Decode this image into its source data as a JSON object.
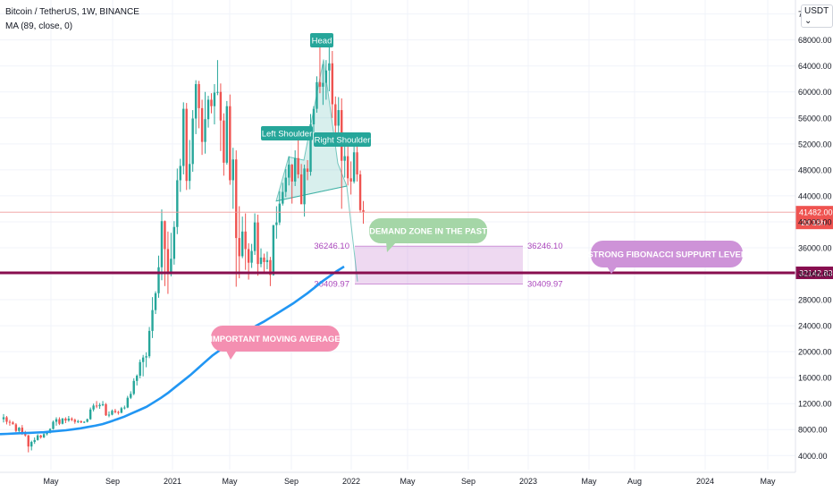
{
  "header": {
    "symbol_line": "Bitcoin / TetherUS, 1W, BINANCE",
    "indicator_line": "MA (89, close, 0)"
  },
  "currency_badge": "USDT",
  "colors": {
    "up": "#26a69a",
    "down": "#ef5350",
    "ma": "#2196f3",
    "support": "#880e4f",
    "demand_zone": "#e1bee7",
    "demand_label": "#a5d6a7",
    "fib_label": "#ce93d8",
    "ma_label": "#f48fb1",
    "hs_label": "#26a69a",
    "price_tag": "#ef5350"
  },
  "chart_data": {
    "type": "candlestick",
    "y_axis": {
      "ticks": [
        "4000.00",
        "8000.00",
        "12000.00",
        "16000.00",
        "20000.00",
        "24000.00",
        "28000.00",
        "32000.00",
        "36000.00",
        "40000.00",
        "44000.00",
        "48000.00",
        "52000.00",
        "56000.00",
        "60000.00",
        "64000.00",
        "68000.00",
        "72000.00"
      ],
      "range": [
        2800,
        72500
      ]
    },
    "x_axis": {
      "ticks": [
        "May",
        "Sep",
        "2021",
        "May",
        "Sep",
        "2022",
        "May",
        "Sep",
        "2023",
        "May",
        "Aug",
        "2024",
        "May"
      ]
    },
    "candles_weekly": [
      [
        9600,
        10400,
        9100,
        9900
      ],
      [
        9900,
        10100,
        8800,
        9200
      ],
      [
        9200,
        9500,
        8600,
        9100
      ],
      [
        9100,
        9300,
        8900,
        8800
      ],
      [
        8800,
        9000,
        7600,
        7800
      ],
      [
        7800,
        8400,
        7500,
        8300
      ],
      [
        8300,
        8700,
        7200,
        7300
      ],
      [
        7300,
        7800,
        6900,
        7100
      ],
      [
        7100,
        7200,
        4500,
        5400
      ],
      [
        5400,
        6300,
        4800,
        6100
      ],
      [
        6100,
        6800,
        5800,
        6400
      ],
      [
        6400,
        7300,
        6300,
        7100
      ],
      [
        7100,
        7200,
        6600,
        6800
      ],
      [
        6800,
        7600,
        6700,
        7300
      ],
      [
        7300,
        7700,
        7100,
        7500
      ],
      [
        7500,
        8200,
        7400,
        8100
      ],
      [
        8100,
        9400,
        8000,
        9200
      ],
      [
        9200,
        9900,
        8600,
        9600
      ],
      [
        9600,
        9900,
        8700,
        8900
      ],
      [
        8900,
        9800,
        8800,
        9700
      ],
      [
        9700,
        9900,
        9000,
        9400
      ],
      [
        9400,
        10100,
        9200,
        9700
      ],
      [
        9700,
        9900,
        9300,
        9500
      ],
      [
        9500,
        9700,
        8900,
        9200
      ],
      [
        9200,
        9500,
        9000,
        9300
      ],
      [
        9300,
        9400,
        9000,
        9100
      ],
      [
        9100,
        9300,
        9000,
        9200
      ],
      [
        9200,
        9700,
        9100,
        9600
      ],
      [
        9600,
        11400,
        9500,
        11100
      ],
      [
        11100,
        12000,
        10800,
        11700
      ],
      [
        11700,
        12400,
        11300,
        11600
      ],
      [
        11600,
        12100,
        11200,
        11800
      ],
      [
        11800,
        12400,
        11600,
        11900
      ],
      [
        11900,
        12100,
        10100,
        10200
      ],
      [
        10200,
        10800,
        9900,
        10300
      ],
      [
        10300,
        11100,
        10200,
        10900
      ],
      [
        10900,
        11200,
        10500,
        10700
      ],
      [
        10700,
        10900,
        10300,
        10600
      ],
      [
        10600,
        11500,
        10500,
        11300
      ],
      [
        11300,
        11700,
        11100,
        11400
      ],
      [
        11400,
        13200,
        11300,
        12900
      ],
      [
        12900,
        13900,
        12700,
        13500
      ],
      [
        13500,
        15900,
        13300,
        15500
      ],
      [
        15500,
        16500,
        14800,
        16300
      ],
      [
        16300,
        18800,
        15900,
        18400
      ],
      [
        18400,
        19500,
        16200,
        19100
      ],
      [
        19100,
        19900,
        17600,
        19300
      ],
      [
        19300,
        23800,
        19000,
        23200
      ],
      [
        23200,
        28400,
        22100,
        26400
      ],
      [
        26400,
        29300,
        25800,
        29000
      ],
      [
        29000,
        34800,
        28300,
        33000
      ],
      [
        33000,
        41900,
        31000,
        40100
      ],
      [
        40100,
        40200,
        30100,
        35800
      ],
      [
        35800,
        38500,
        28900,
        32300
      ],
      [
        32300,
        38300,
        31600,
        34300
      ],
      [
        34300,
        40100,
        33400,
        39200
      ],
      [
        39200,
        48200,
        38100,
        46400
      ],
      [
        46400,
        49700,
        44600,
        48600
      ],
      [
        48600,
        58400,
        47300,
        57400
      ],
      [
        57400,
        58300,
        44900,
        46300
      ],
      [
        46300,
        52600,
        45000,
        48900
      ],
      [
        48900,
        57200,
        47700,
        55900
      ],
      [
        55900,
        61800,
        53500,
        61200
      ],
      [
        61200,
        61700,
        54400,
        57500
      ],
      [
        57500,
        58800,
        50300,
        52300
      ],
      [
        52300,
        60000,
        50500,
        55800
      ],
      [
        55800,
        59400,
        54500,
        58800
      ],
      [
        58800,
        59800,
        56700,
        57800
      ],
      [
        57800,
        61200,
        55000,
        59900
      ],
      [
        59900,
        64900,
        59500,
        60000
      ],
      [
        60000,
        61300,
        50900,
        55600
      ],
      [
        55600,
        56700,
        47100,
        49100
      ],
      [
        49100,
        58600,
        48800,
        57800
      ],
      [
        57800,
        59600,
        45700,
        46400
      ],
      [
        46400,
        51400,
        42000,
        49600
      ],
      [
        49600,
        51000,
        30000,
        37500
      ],
      [
        37500,
        42400,
        31300,
        34700
      ],
      [
        34700,
        40800,
        34400,
        38500
      ],
      [
        38500,
        41300,
        32600,
        35800
      ],
      [
        35800,
        36700,
        31100,
        33700
      ],
      [
        33700,
        36600,
        32900,
        35500
      ],
      [
        35500,
        41300,
        34900,
        39900
      ],
      [
        39900,
        41100,
        31700,
        33500
      ],
      [
        33500,
        35900,
        33000,
        34500
      ],
      [
        34500,
        35100,
        32100,
        33800
      ],
      [
        33800,
        35400,
        32700,
        34100
      ],
      [
        34100,
        34600,
        30100,
        31800
      ],
      [
        31800,
        39300,
        31700,
        39500
      ],
      [
        39500,
        42400,
        37400,
        39900
      ],
      [
        39900,
        44700,
        39500,
        42800
      ],
      [
        42800,
        46000,
        42500,
        44600
      ],
      [
        44600,
        48100,
        43800,
        46800
      ],
      [
        46800,
        50100,
        45600,
        48800
      ],
      [
        48800,
        48900,
        42800,
        46200
      ],
      [
        46200,
        51000,
        45500,
        49800
      ],
      [
        49800,
        52900,
        46700,
        47300
      ],
      [
        47300,
        48900,
        42800,
        42700
      ],
      [
        42700,
        48800,
        40800,
        48200
      ],
      [
        48200,
        49500,
        46400,
        47700
      ],
      [
        47700,
        56600,
        47100,
        55000
      ],
      [
        55000,
        57800,
        53800,
        57400
      ],
      [
        57400,
        62400,
        56800,
        61500
      ],
      [
        61500,
        67000,
        59800,
        60800
      ],
      [
        60800,
        64300,
        58000,
        61400
      ],
      [
        61400,
        64900,
        58800,
        63300
      ],
      [
        63300,
        69000,
        60100,
        64400
      ],
      [
        64400,
        66300,
        56000,
        58100
      ],
      [
        58100,
        59300,
        53300,
        54800
      ],
      [
        54800,
        59200,
        53500,
        57200
      ],
      [
        57200,
        59000,
        42000,
        49400
      ],
      [
        49400,
        51900,
        46800,
        50100
      ],
      [
        50100,
        52000,
        45600,
        46700
      ],
      [
        46700,
        49300,
        44200,
        46200
      ],
      [
        46200,
        52000,
        45900,
        50700
      ],
      [
        50700,
        51900,
        46200,
        47300
      ],
      [
        47300,
        47900,
        41400,
        41800
      ],
      [
        41800,
        43200,
        39700,
        41500
      ]
    ],
    "moving_average": {
      "name": "MA (89, close, 0)",
      "values": [
        7300,
        7350,
        7400,
        7450,
        7500,
        7550,
        7600,
        7700,
        7800,
        7900,
        8050,
        8200,
        8400,
        8600,
        8850,
        9200,
        9600,
        10000,
        10500,
        11000,
        11500,
        12200,
        12900,
        13700,
        14600,
        15500,
        16400,
        17400,
        18400,
        19400,
        20200,
        21100,
        21900,
        22600,
        23300,
        24000,
        24600,
        25300,
        26000,
        26700,
        27400,
        28200,
        29000,
        29900,
        30800,
        31600,
        32400,
        33100
      ]
    },
    "current_price": "41482.00",
    "countdown": "2d 18h",
    "support_level": "32142.83",
    "demand_zone": {
      "top": "36246.10",
      "bottom": "30409.97"
    },
    "annotations": {
      "head": "Head",
      "left_shoulder": "Left Shoulder",
      "right_shoulder": "Right Shoulder",
      "demand": "DEMAND ZONE IN THE PAST",
      "fibonacci": "STRONG FIBONACCI SUPPURT LEVEL",
      "moving_average": "IMPORTANT MOVING AVERAGE"
    }
  }
}
